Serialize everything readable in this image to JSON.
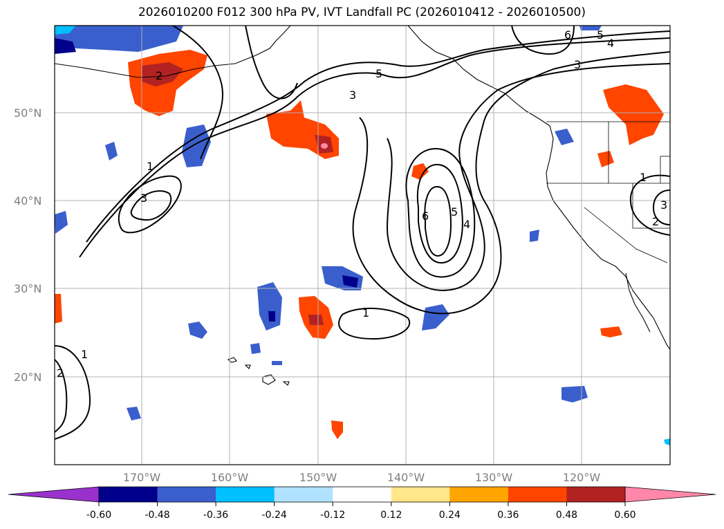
{
  "title": "2026010200 F012 300 hPa PV, IVT Landfall PC (2026010412 - 2026010500)",
  "map": {
    "lat_labels": [
      "50°N",
      "40°N",
      "30°N",
      "20°N"
    ],
    "lon_labels": [
      "170°W",
      "160°W",
      "150°W",
      "140°W",
      "130°W",
      "120°W"
    ],
    "extent": {
      "lon_min": -180,
      "lon_max": -110,
      "lat_min": 10,
      "lat_max": 60
    },
    "gridlines": true
  },
  "colorbar": {
    "ticks": [
      "-0.60",
      "-0.48",
      "-0.36",
      "-0.24",
      "-0.12",
      "0.12",
      "0.24",
      "0.36",
      "0.48",
      "0.60"
    ],
    "colors": [
      "#9932cc",
      "#00008b",
      "#3a5fcd",
      "#00bfff",
      "#b0e2ff",
      "#ffffff",
      "#ffe78a",
      "#ffa500",
      "#ff4500",
      "#b22222",
      "#ff88aa"
    ]
  },
  "contour_labels": [
    "1",
    "2",
    "3",
    "4",
    "5",
    "6"
  ]
}
